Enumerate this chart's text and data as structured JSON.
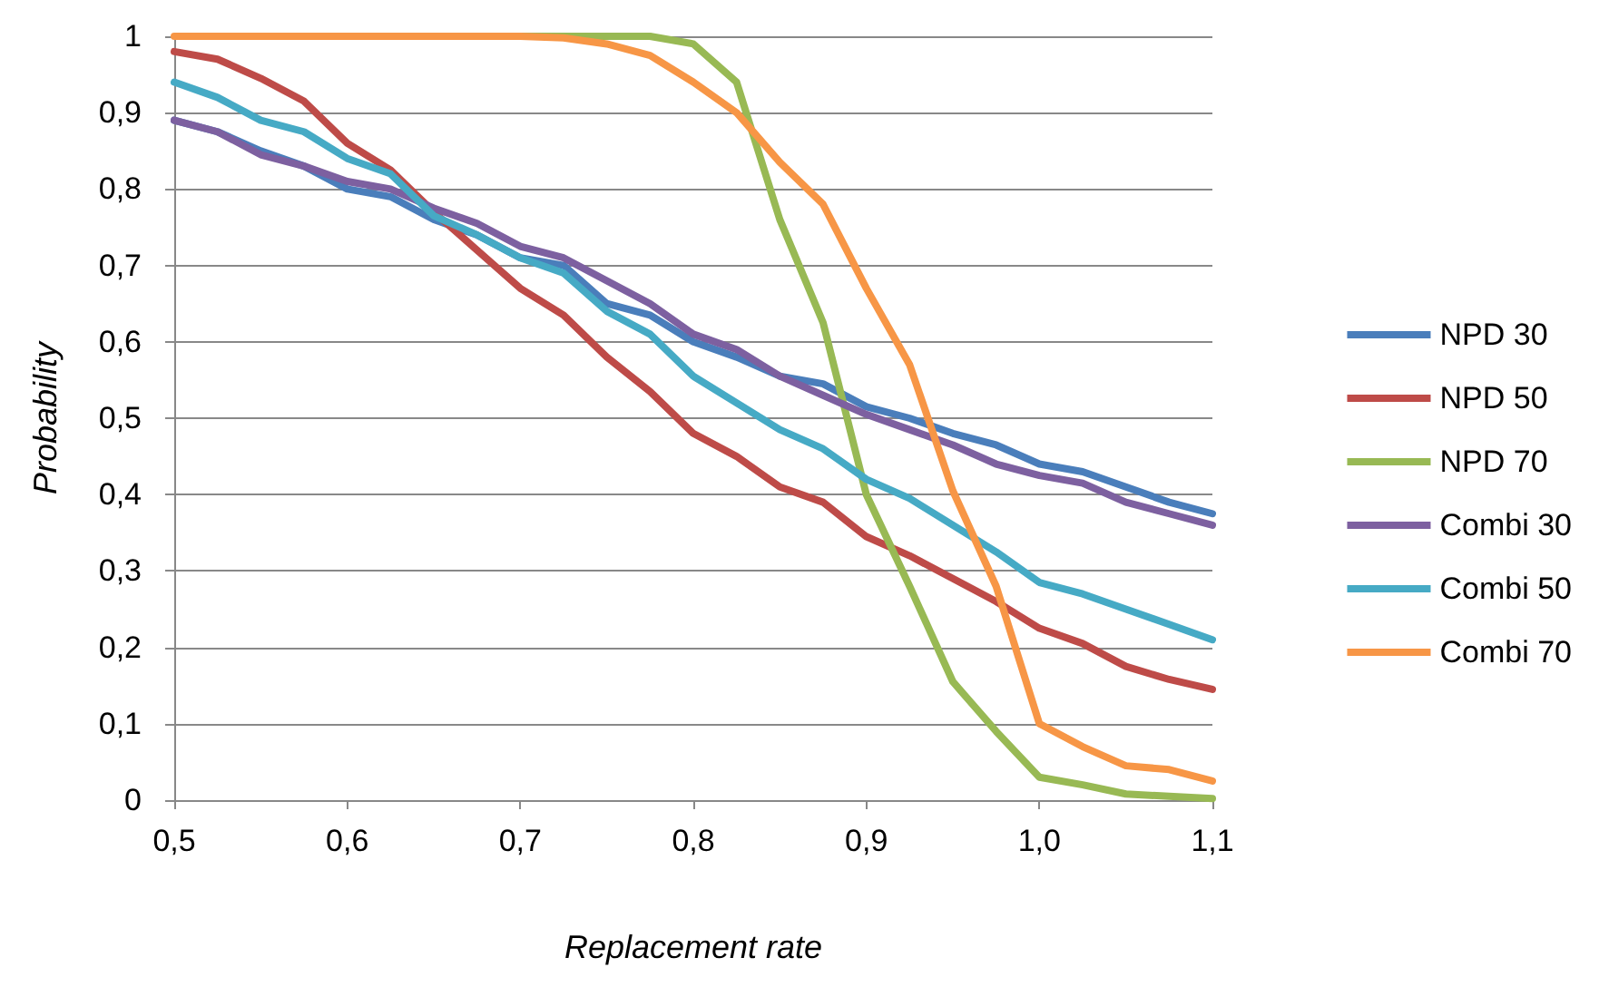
{
  "chart_data": {
    "type": "line",
    "xlabel": "Replacement rate",
    "ylabel": "Probability",
    "x": [
      0.5,
      0.525,
      0.55,
      0.575,
      0.6,
      0.625,
      0.65,
      0.675,
      0.7,
      0.725,
      0.75,
      0.775,
      0.8,
      0.825,
      0.85,
      0.875,
      0.9,
      0.925,
      0.95,
      0.975,
      1.0,
      1.025,
      1.05,
      1.075,
      1.1
    ],
    "series": [
      {
        "name": "NPD 30",
        "color": "#4a7ebb",
        "values": [
          0.89,
          0.875,
          0.85,
          0.83,
          0.8,
          0.79,
          0.76,
          0.74,
          0.71,
          0.7,
          0.65,
          0.635,
          0.6,
          0.58,
          0.555,
          0.545,
          0.515,
          0.5,
          0.48,
          0.465,
          0.44,
          0.43,
          0.41,
          0.39,
          0.375
        ]
      },
      {
        "name": "NPD 50",
        "color": "#be4b48",
        "values": [
          0.98,
          0.97,
          0.945,
          0.915,
          0.86,
          0.825,
          0.77,
          0.72,
          0.67,
          0.635,
          0.58,
          0.535,
          0.48,
          0.45,
          0.41,
          0.39,
          0.345,
          0.32,
          0.29,
          0.26,
          0.225,
          0.205,
          0.175,
          0.158,
          0.145
        ]
      },
      {
        "name": "NPD 70",
        "color": "#98b954",
        "values": [
          null,
          null,
          null,
          null,
          null,
          null,
          null,
          null,
          1,
          1,
          1,
          1,
          0.99,
          0.94,
          0.76,
          0.625,
          0.4,
          0.28,
          0.155,
          0.09,
          0.03,
          0.02,
          0.008,
          0.005,
          0.002
        ]
      },
      {
        "name": "Combi 30",
        "color": "#7d60a0",
        "values": [
          0.89,
          0.875,
          0.845,
          0.83,
          0.81,
          0.8,
          0.775,
          0.755,
          0.725,
          0.71,
          0.68,
          0.65,
          0.61,
          0.59,
          0.555,
          0.53,
          0.505,
          0.485,
          0.465,
          0.44,
          0.425,
          0.415,
          0.39,
          0.375,
          0.36
        ]
      },
      {
        "name": "Combi 50",
        "color": "#46aac5",
        "values": [
          0.94,
          0.92,
          0.89,
          0.875,
          0.84,
          0.82,
          0.765,
          0.74,
          0.71,
          0.69,
          0.64,
          0.61,
          0.555,
          0.52,
          0.485,
          0.46,
          0.42,
          0.395,
          0.36,
          0.325,
          0.285,
          0.27,
          0.25,
          0.23,
          0.21
        ]
      },
      {
        "name": "Combi 70",
        "color": "#f79646",
        "values": [
          1,
          1,
          1,
          1,
          1,
          1,
          1,
          1,
          1,
          0.998,
          0.99,
          0.975,
          0.94,
          0.9,
          0.835,
          0.78,
          0.67,
          0.57,
          0.405,
          0.28,
          0.1,
          0.07,
          0.045,
          0.04,
          0.025
        ]
      }
    ],
    "xlim": [
      0.5,
      1.1
    ],
    "xticks": [
      {
        "value": 0.5,
        "label": "0,5"
      },
      {
        "value": 0.6,
        "label": "0,6"
      },
      {
        "value": 0.7,
        "label": "0,7"
      },
      {
        "value": 0.8,
        "label": "0,8"
      },
      {
        "value": 0.9,
        "label": "0,9"
      },
      {
        "value": 1.0,
        "label": "1,0"
      },
      {
        "value": 1.1,
        "label": "1,1"
      }
    ],
    "ylim": [
      0,
      1
    ],
    "yticks": [
      0,
      {
        "value": 0.1,
        "label": "0,1"
      },
      {
        "value": 0.2,
        "label": "0,2"
      },
      {
        "value": 0.3,
        "label": "0,3"
      },
      {
        "value": 0.4,
        "label": "0,4"
      },
      {
        "value": 0.5,
        "label": "0,5"
      },
      {
        "value": 0.6,
        "label": "0,6"
      },
      {
        "value": 0.7,
        "label": "0,7"
      },
      {
        "value": 0.8,
        "label": "0,8"
      },
      {
        "value": 0.9,
        "label": "0,9"
      },
      1
    ],
    "grid": "y",
    "legend": "right",
    "marker": "none",
    "line_style": "solid"
  }
}
